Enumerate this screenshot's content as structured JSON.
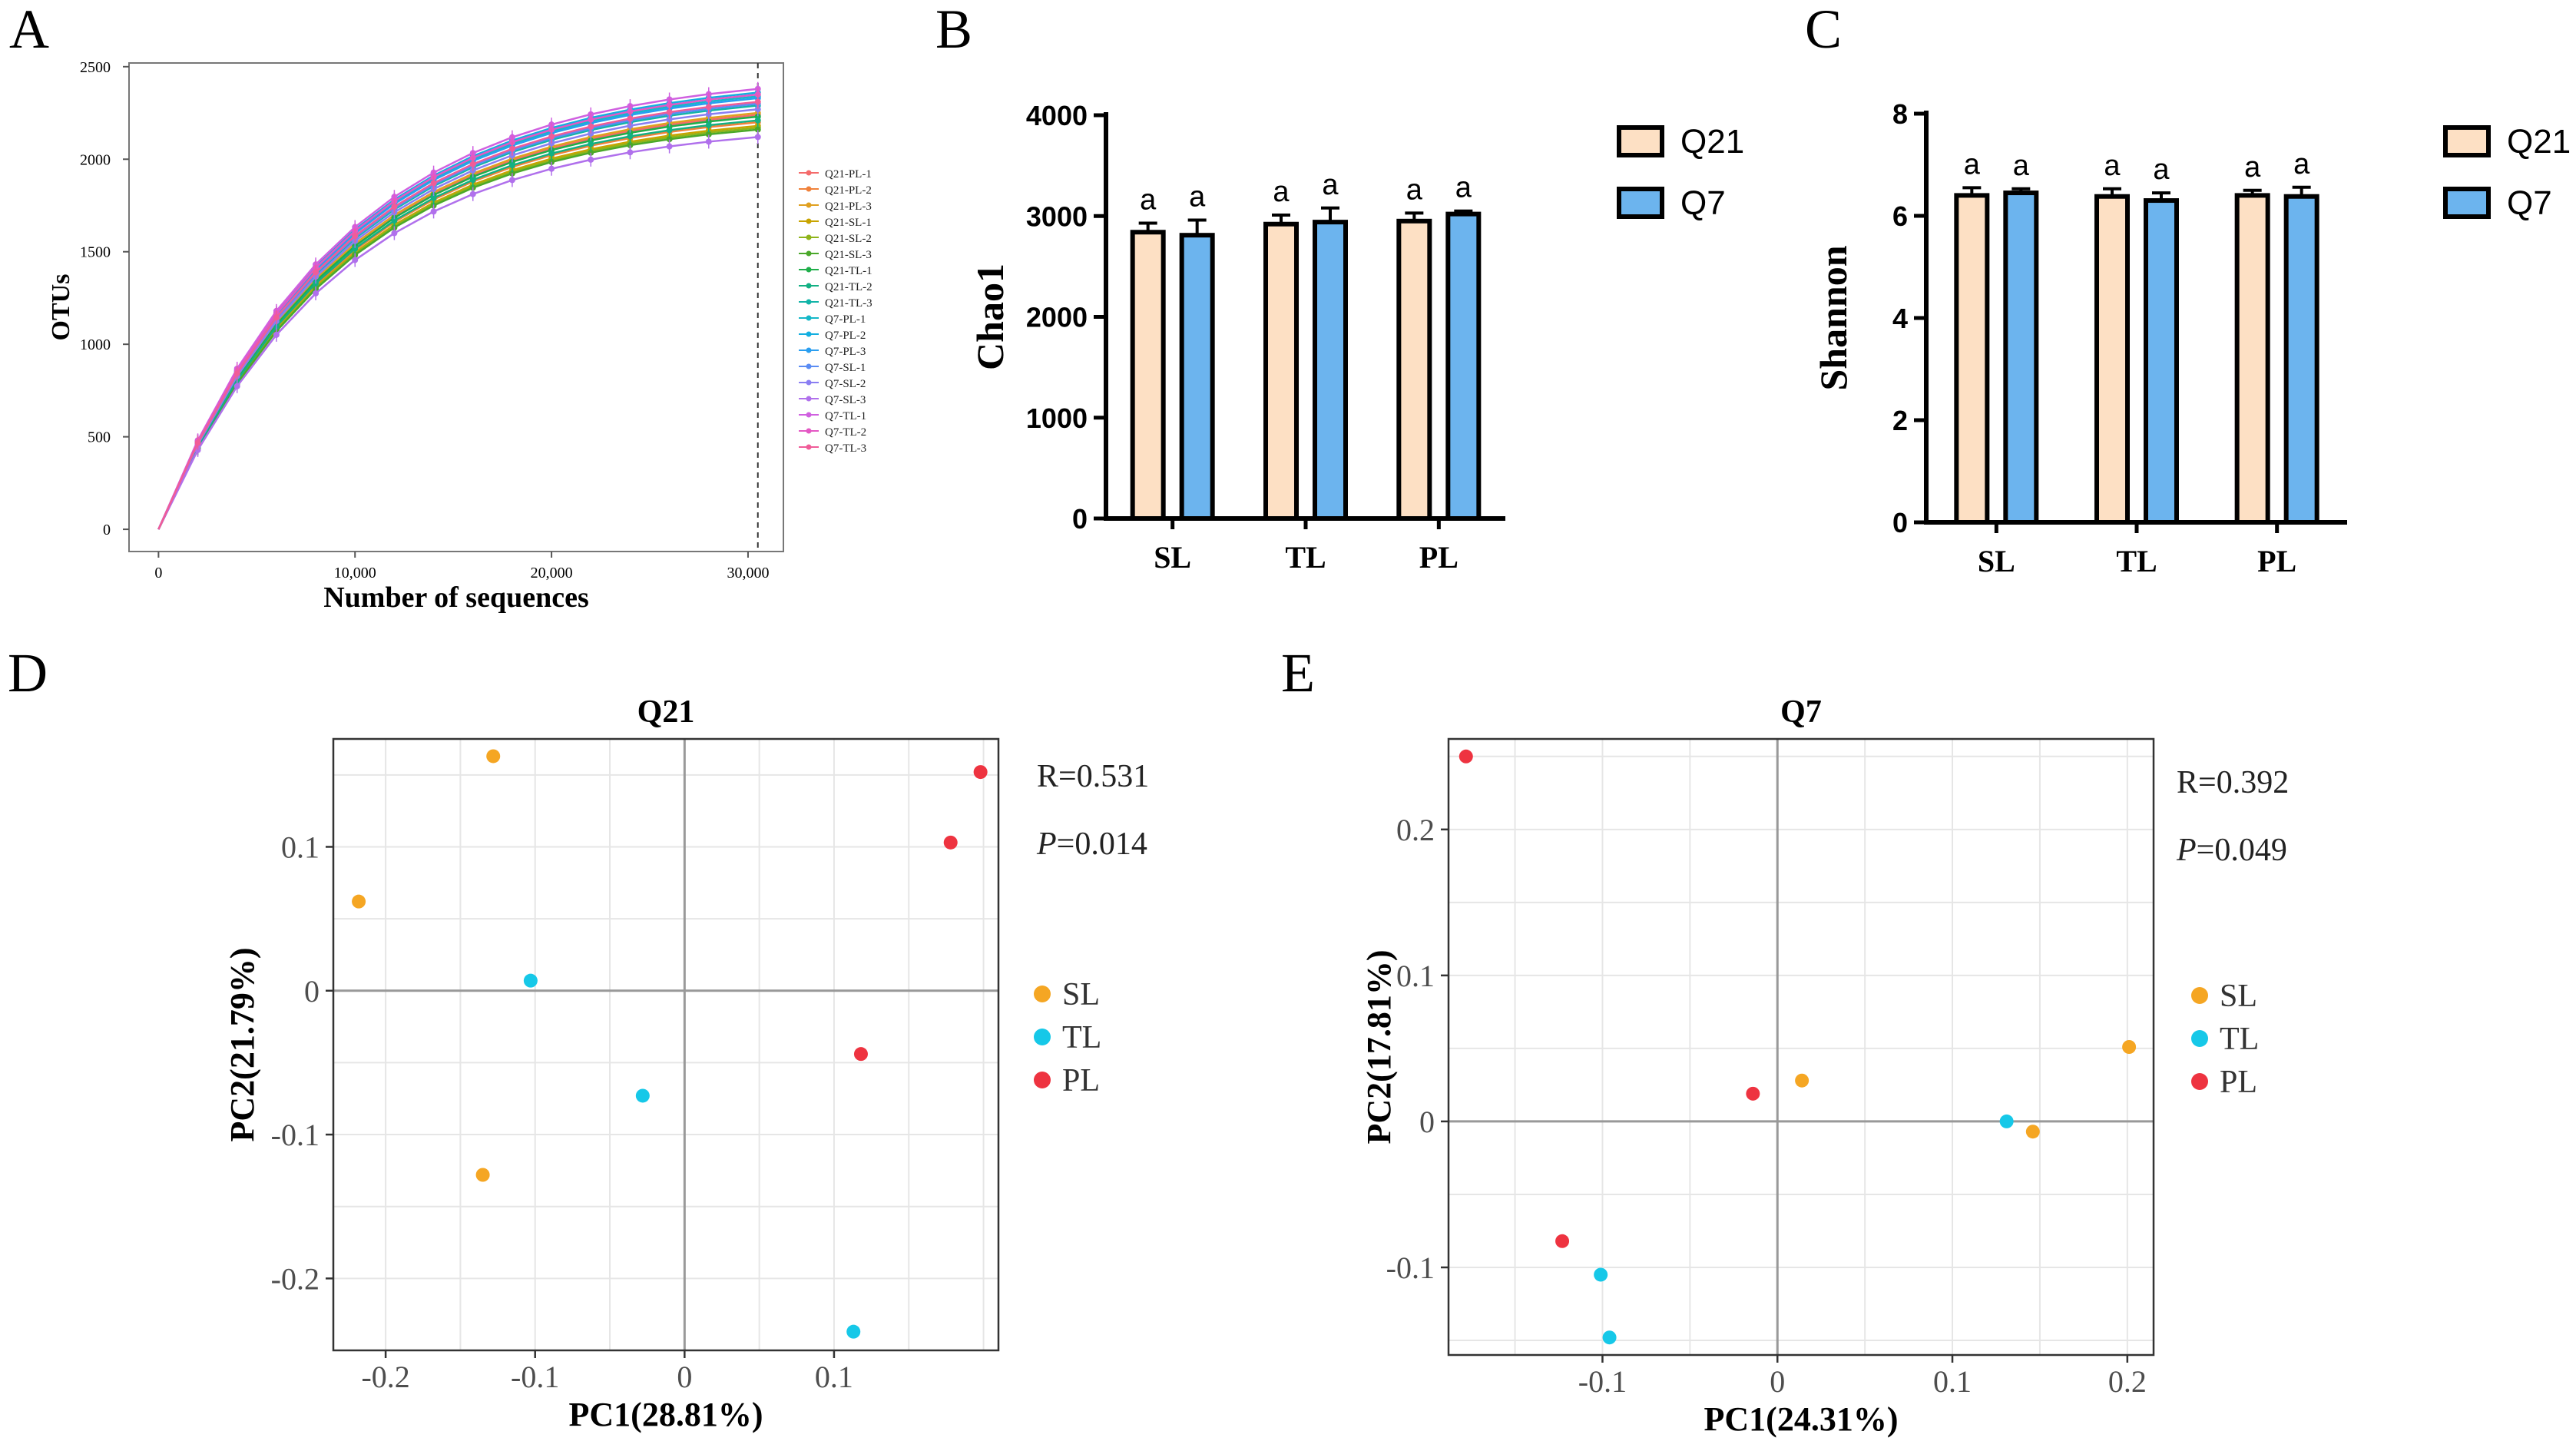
{
  "colors": {
    "q21_bar": "#fde0c4",
    "q7_bar": "#6cb4ee",
    "SL": "#f5a623",
    "TL": "#16c8e8",
    "PL": "#ee3340",
    "axis": "#000000",
    "grid": "#e6e6e6",
    "zero_line": "#999999"
  },
  "chart_data": [
    {
      "panel": "A",
      "type": "line",
      "title": "",
      "xlabel": "Number of sequences",
      "ylabel": "OTUs",
      "x_ticks": [
        0,
        10000,
        20000,
        30000
      ],
      "x_tick_labels": [
        "0",
        "10,000",
        "20,000",
        "30,000"
      ],
      "y_ticks": [
        0,
        500,
        1000,
        1500,
        2000,
        2500
      ],
      "y_tick_labels": [
        "0",
        "500",
        "1000",
        "1500",
        "2000",
        "2500"
      ],
      "xlim": [
        -1500,
        31800
      ],
      "ylim": [
        -120,
        2520
      ],
      "cutoff_x": 30500,
      "x": [
        0,
        2000,
        4000,
        6000,
        8000,
        10000,
        12000,
        14000,
        16000,
        18000,
        20000,
        22000,
        24000,
        26000,
        28000,
        30500
      ],
      "series": [
        {
          "name": "Q21-PL-1",
          "color": "#f46b6b",
          "final": 2240
        },
        {
          "name": "Q21-PL-2",
          "color": "#f0813a",
          "final": 2200
        },
        {
          "name": "Q21-PL-3",
          "color": "#e0a020",
          "final": 2250
        },
        {
          "name": "Q21-SL-1",
          "color": "#c8a400",
          "final": 2180
        },
        {
          "name": "Q21-SL-2",
          "color": "#8fb41a",
          "final": 2170
        },
        {
          "name": "Q21-SL-3",
          "color": "#4aa82a",
          "final": 2160
        },
        {
          "name": "Q21-TL-1",
          "color": "#1fae4a",
          "final": 2230
        },
        {
          "name": "Q21-TL-2",
          "color": "#13b083",
          "final": 2210
        },
        {
          "name": "Q21-TL-3",
          "color": "#12b4a8",
          "final": 2290
        },
        {
          "name": "Q7-PL-1",
          "color": "#14b8c8",
          "final": 2340
        },
        {
          "name": "Q7-PL-2",
          "color": "#12aee0",
          "final": 2360
        },
        {
          "name": "Q7-PL-3",
          "color": "#2a9ef0",
          "final": 2330
        },
        {
          "name": "Q7-SL-1",
          "color": "#5a8cf4",
          "final": 2300
        },
        {
          "name": "Q7-SL-2",
          "color": "#8a7ef2",
          "final": 2270
        },
        {
          "name": "Q7-SL-3",
          "color": "#b070ec",
          "final": 2120
        },
        {
          "name": "Q7-TL-1",
          "color": "#d060e0",
          "final": 2380
        },
        {
          "name": "Q7-TL-2",
          "color": "#e458c4",
          "final": 2350
        },
        {
          "name": "Q7-TL-3",
          "color": "#f05c98",
          "final": 2310
        }
      ]
    },
    {
      "panel": "B",
      "type": "bar",
      "ylabel": "Chao1",
      "categories": [
        "SL",
        "TL",
        "PL"
      ],
      "ylim": [
        0,
        4000
      ],
      "y_ticks": [
        0,
        1000,
        2000,
        3000,
        4000
      ],
      "series": [
        {
          "name": "Q21",
          "values": [
            2840,
            2920,
            2950
          ],
          "errors": [
            90,
            90,
            80
          ],
          "letters": [
            "a",
            "a",
            "a"
          ]
        },
        {
          "name": "Q7",
          "values": [
            2810,
            2940,
            3020
          ],
          "errors": [
            150,
            140,
            30
          ],
          "letters": [
            "a",
            "a",
            "a"
          ]
        }
      ]
    },
    {
      "panel": "C",
      "type": "bar",
      "ylabel": "Shannon",
      "categories": [
        "SL",
        "TL",
        "PL"
      ],
      "ylim": [
        0,
        8
      ],
      "y_ticks": [
        0,
        2,
        4,
        6,
        8
      ],
      "series": [
        {
          "name": "Q21",
          "values": [
            6.4,
            6.38,
            6.4
          ],
          "errors": [
            0.15,
            0.15,
            0.1
          ],
          "letters": [
            "a",
            "a",
            "a"
          ]
        },
        {
          "name": "Q7",
          "values": [
            6.45,
            6.3,
            6.38
          ],
          "errors": [
            0.08,
            0.15,
            0.18
          ],
          "letters": [
            "a",
            "a",
            "a"
          ]
        }
      ]
    },
    {
      "panel": "D",
      "type": "scatter",
      "title": "Q21",
      "xlabel": "PC1(28.81%)",
      "ylabel": "PC2(21.79%)",
      "xlim": [
        -0.235,
        0.21
      ],
      "ylim": [
        -0.25,
        0.175
      ],
      "x_ticks": [
        -0.2,
        -0.1,
        0,
        0.1
      ],
      "x_tick_labels": [
        "-0.2",
        "-0.1",
        "0",
        "0.1"
      ],
      "y_ticks": [
        -0.2,
        -0.1,
        0,
        0.1
      ],
      "y_tick_labels": [
        "-0.2",
        "-0.1",
        "0",
        "0.1"
      ],
      "stat_r": "R=0.531",
      "stat_p_letter": "P",
      "stat_p_value": "=0.014",
      "legend": [
        "SL",
        "TL",
        "PL"
      ],
      "points": [
        {
          "group": "SL",
          "x": -0.128,
          "y": 0.163
        },
        {
          "group": "SL",
          "x": -0.218,
          "y": 0.062
        },
        {
          "group": "SL",
          "x": -0.135,
          "y": -0.128
        },
        {
          "group": "TL",
          "x": -0.103,
          "y": 0.007
        },
        {
          "group": "TL",
          "x": -0.028,
          "y": -0.073
        },
        {
          "group": "TL",
          "x": 0.113,
          "y": -0.237
        },
        {
          "group": "PL",
          "x": 0.198,
          "y": 0.152
        },
        {
          "group": "PL",
          "x": 0.178,
          "y": 0.103
        },
        {
          "group": "PL",
          "x": 0.118,
          "y": -0.044
        }
      ]
    },
    {
      "panel": "E",
      "type": "scatter",
      "title": "Q7",
      "xlabel": "PC1(24.31%)",
      "ylabel": "PC2(17.81%)",
      "xlim": [
        -0.188,
        0.215
      ],
      "ylim": [
        -0.16,
        0.262
      ],
      "x_ticks": [
        -0.1,
        0,
        0.1,
        0.2
      ],
      "x_tick_labels": [
        "-0.1",
        "0",
        "0.1",
        "0.2"
      ],
      "y_ticks": [
        -0.1,
        0,
        0.1,
        0.2
      ],
      "y_tick_labels": [
        "-0.1",
        "0",
        "0.1",
        "0.2"
      ],
      "stat_r": "R=0.392",
      "stat_p_letter": "P",
      "stat_p_value": "=0.049",
      "legend": [
        "SL",
        "TL",
        "PL"
      ],
      "points": [
        {
          "group": "SL",
          "x": 0.014,
          "y": 0.028
        },
        {
          "group": "SL",
          "x": 0.201,
          "y": 0.051
        },
        {
          "group": "SL",
          "x": 0.146,
          "y": -0.007
        },
        {
          "group": "TL",
          "x": 0.131,
          "y": 0.0
        },
        {
          "group": "TL",
          "x": -0.101,
          "y": -0.105
        },
        {
          "group": "TL",
          "x": -0.096,
          "y": -0.148
        },
        {
          "group": "PL",
          "x": -0.178,
          "y": 0.25
        },
        {
          "group": "PL",
          "x": -0.014,
          "y": 0.019
        },
        {
          "group": "PL",
          "x": -0.123,
          "y": -0.082
        }
      ]
    }
  ],
  "panel_labels": [
    "A",
    "B",
    "C",
    "D",
    "E"
  ]
}
